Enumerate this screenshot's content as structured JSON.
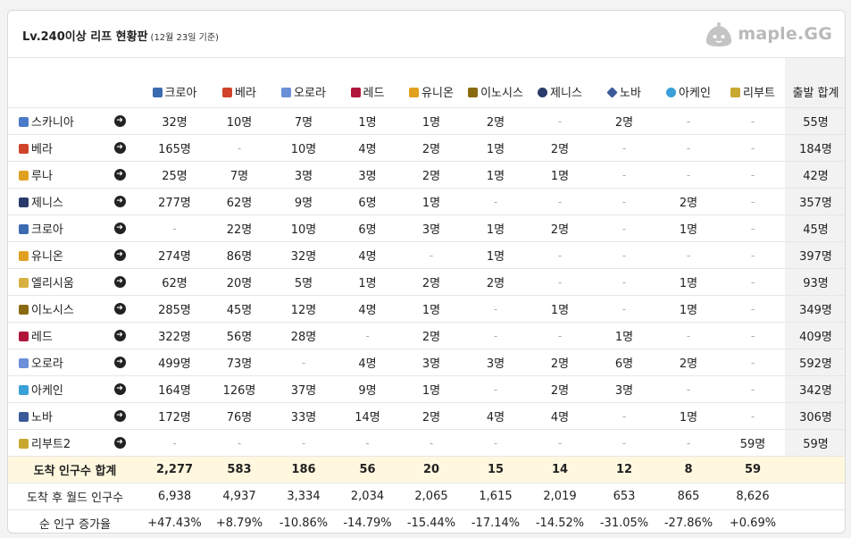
{
  "header": {
    "title": "Lv.240이상 리프 현황판",
    "date_note": "(12월 23일 기준)",
    "logo_text": "maple.GG"
  },
  "columns": [
    {
      "name": "크로아",
      "color": "#3b6bb0",
      "icon": "croa-icon"
    },
    {
      "name": "베라",
      "color": "#d0432b",
      "icon": "bera-icon"
    },
    {
      "name": "오로라",
      "color": "#6b8fd8",
      "icon": "aurora-icon"
    },
    {
      "name": "레드",
      "color": "#b0163a",
      "icon": "red-icon"
    },
    {
      "name": "유니온",
      "color": "#e0a020",
      "icon": "union-icon"
    },
    {
      "name": "이노시스",
      "color": "#8a6a10",
      "icon": "innosis-icon"
    },
    {
      "name": "제니스",
      "color": "#2a3a6a",
      "icon": "zenith-icon"
    },
    {
      "name": "노바",
      "color": "#3a5a9a",
      "icon": "nova-icon"
    },
    {
      "name": "아케인",
      "color": "#3aa0d8",
      "icon": "arcane-icon"
    },
    {
      "name": "리부트",
      "color": "#c8a830",
      "icon": "reboot-icon"
    }
  ],
  "total_header": "출발 합계",
  "rows": [
    {
      "name": "스카니아",
      "color": "#4a7ac8",
      "icon": "scania-icon",
      "values": [
        "32명",
        "10명",
        "7명",
        "1명",
        "1명",
        "2명",
        "-",
        "2명",
        "-",
        "-"
      ],
      "total": "55명"
    },
    {
      "name": "베라",
      "color": "#d0432b",
      "icon": "bera-icon",
      "values": [
        "165명",
        "-",
        "10명",
        "4명",
        "2명",
        "1명",
        "2명",
        "-",
        "-",
        "-"
      ],
      "total": "184명"
    },
    {
      "name": "루나",
      "color": "#e0a020",
      "icon": "luna-icon",
      "values": [
        "25명",
        "7명",
        "3명",
        "3명",
        "2명",
        "1명",
        "1명",
        "-",
        "-",
        "-"
      ],
      "total": "42명"
    },
    {
      "name": "제니스",
      "color": "#2a3a6a",
      "icon": "zenith-icon",
      "values": [
        "277명",
        "62명",
        "9명",
        "6명",
        "1명",
        "-",
        "-",
        "-",
        "2명",
        "-"
      ],
      "total": "357명"
    },
    {
      "name": "크로아",
      "color": "#3b6bb0",
      "icon": "croa-icon",
      "values": [
        "-",
        "22명",
        "10명",
        "6명",
        "3명",
        "1명",
        "2명",
        "-",
        "1명",
        "-"
      ],
      "total": "45명"
    },
    {
      "name": "유니온",
      "color": "#e0a020",
      "icon": "union-icon",
      "values": [
        "274명",
        "86명",
        "32명",
        "4명",
        "-",
        "1명",
        "-",
        "-",
        "-",
        "-"
      ],
      "total": "397명"
    },
    {
      "name": "엘리시움",
      "color": "#d8b040",
      "icon": "elysium-icon",
      "values": [
        "62명",
        "20명",
        "5명",
        "1명",
        "2명",
        "2명",
        "-",
        "-",
        "1명",
        "-"
      ],
      "total": "93명"
    },
    {
      "name": "이노시스",
      "color": "#8a6a10",
      "icon": "innosis-icon",
      "values": [
        "285명",
        "45명",
        "12명",
        "4명",
        "1명",
        "-",
        "1명",
        "-",
        "1명",
        "-"
      ],
      "total": "349명"
    },
    {
      "name": "레드",
      "color": "#b0163a",
      "icon": "red-icon",
      "values": [
        "322명",
        "56명",
        "28명",
        "-",
        "2명",
        "-",
        "-",
        "1명",
        "-",
        "-"
      ],
      "total": "409명"
    },
    {
      "name": "오로라",
      "color": "#6b8fd8",
      "icon": "aurora-icon",
      "values": [
        "499명",
        "73명",
        "-",
        "4명",
        "3명",
        "3명",
        "2명",
        "6명",
        "2명",
        "-"
      ],
      "total": "592명"
    },
    {
      "name": "아케인",
      "color": "#3aa0d8",
      "icon": "arcane-icon",
      "values": [
        "164명",
        "126명",
        "37명",
        "9명",
        "1명",
        "-",
        "2명",
        "3명",
        "-",
        "-"
      ],
      "total": "342명"
    },
    {
      "name": "노바",
      "color": "#3a5a9a",
      "icon": "nova-icon",
      "values": [
        "172명",
        "76명",
        "33명",
        "14명",
        "2명",
        "4명",
        "4명",
        "-",
        "1명",
        "-"
      ],
      "total": "306명"
    },
    {
      "name": "리부트2",
      "color": "#c8a830",
      "icon": "reboot2-icon",
      "values": [
        "-",
        "-",
        "-",
        "-",
        "-",
        "-",
        "-",
        "-",
        "-",
        "59명"
      ],
      "total": "59명"
    }
  ],
  "summary": {
    "arrival_label": "도착 인구수 합계",
    "arrival": [
      "2,277",
      "583",
      "186",
      "56",
      "20",
      "15",
      "14",
      "12",
      "8",
      "59"
    ],
    "after_label": "도착 후 월드 인구수",
    "after": [
      "6,938",
      "4,937",
      "3,334",
      "2,034",
      "2,065",
      "1,615",
      "2,019",
      "653",
      "865",
      "8,626"
    ],
    "rate_label": "순 인구 증가율",
    "rate": [
      "+47.43%",
      "+8.79%",
      "-10.86%",
      "-14.79%",
      "-15.44%",
      "-17.14%",
      "-14.52%",
      "-31.05%",
      "-27.86%",
      "+0.69%"
    ]
  }
}
